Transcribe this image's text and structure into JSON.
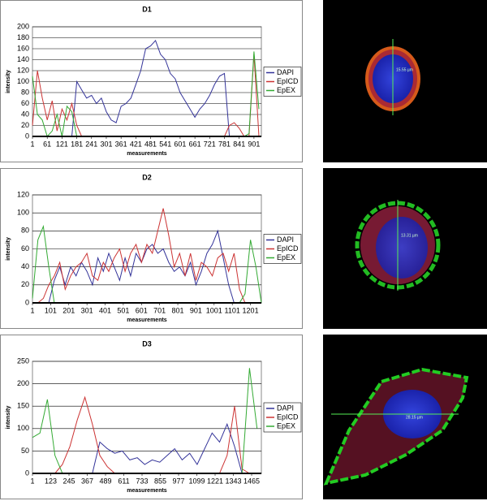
{
  "chart_data": [
    {
      "type": "line",
      "title": "D1",
      "xlabel": "measurements",
      "ylabel": "intensity",
      "x": [
        1,
        21,
        41,
        61,
        81,
        101,
        121,
        141,
        161,
        181,
        201,
        221,
        241,
        261,
        281,
        301,
        321,
        341,
        361,
        381,
        401,
        421,
        441,
        461,
        481,
        501,
        521,
        541,
        561,
        581,
        601,
        621,
        641,
        661,
        681,
        701,
        721,
        741,
        761,
        781,
        801,
        821,
        841,
        861,
        881,
        901,
        921
      ],
      "series": [
        {
          "name": "DAPI",
          "color": "#333399",
          "values": [
            0,
            0,
            0,
            0,
            0,
            0,
            0,
            0,
            0,
            100,
            85,
            70,
            75,
            60,
            70,
            45,
            30,
            25,
            55,
            60,
            70,
            95,
            120,
            160,
            165,
            175,
            150,
            140,
            115,
            105,
            80,
            65,
            50,
            35,
            50,
            60,
            75,
            95,
            110,
            115,
            0,
            0,
            0,
            0,
            0,
            0,
            0
          ]
        },
        {
          "name": "EpICD",
          "color": "#cc3333",
          "values": [
            20,
            120,
            70,
            30,
            65,
            10,
            50,
            30,
            60,
            20,
            0,
            0,
            0,
            0,
            0,
            0,
            0,
            0,
            0,
            0,
            0,
            0,
            0,
            0,
            0,
            0,
            0,
            0,
            0,
            0,
            0,
            0,
            0,
            0,
            0,
            0,
            0,
            0,
            0,
            0,
            20,
            25,
            15,
            0,
            0,
            150,
            0
          ]
        },
        {
          "name": "EpEX",
          "color": "#33aa33",
          "values": [
            110,
            40,
            30,
            0,
            10,
            40,
            0,
            55,
            45,
            0,
            0,
            0,
            0,
            0,
            0,
            0,
            0,
            0,
            0,
            0,
            0,
            0,
            0,
            0,
            0,
            0,
            0,
            0,
            0,
            0,
            0,
            0,
            0,
            0,
            0,
            0,
            0,
            0,
            0,
            0,
            0,
            0,
            0,
            0,
            5,
            155,
            50
          ]
        }
      ],
      "xlim": [
        1,
        931
      ],
      "xticks": [
        1,
        61,
        121,
        181,
        241,
        301,
        361,
        421,
        481,
        541,
        601,
        661,
        721,
        781,
        841,
        901
      ],
      "ylim": [
        0,
        200
      ],
      "yticks": [
        0,
        20,
        40,
        60,
        80,
        100,
        120,
        140,
        160,
        180,
        200
      ],
      "grid": true,
      "legend": "right"
    },
    {
      "type": "line",
      "title": "D2",
      "xlabel": "measurements",
      "ylabel": "intensity",
      "x": [
        1,
        31,
        61,
        91,
        121,
        151,
        181,
        211,
        241,
        271,
        301,
        331,
        361,
        391,
        421,
        451,
        481,
        511,
        541,
        571,
        601,
        631,
        661,
        691,
        721,
        751,
        781,
        811,
        841,
        871,
        901,
        931,
        961,
        991,
        1021,
        1051,
        1081,
        1111,
        1141,
        1171,
        1201,
        1231,
        1261
      ],
      "series": [
        {
          "name": "DAPI",
          "color": "#333399",
          "values": [
            0,
            0,
            0,
            0,
            25,
            40,
            20,
            40,
            30,
            45,
            35,
            20,
            50,
            35,
            55,
            40,
            25,
            50,
            30,
            55,
            45,
            60,
            65,
            55,
            60,
            45,
            35,
            40,
            30,
            45,
            20,
            35,
            55,
            65,
            80,
            50,
            20,
            0,
            0,
            0,
            0,
            0,
            0
          ]
        },
        {
          "name": "EpICD",
          "color": "#cc3333",
          "values": [
            0,
            0,
            5,
            20,
            30,
            45,
            15,
            30,
            40,
            45,
            55,
            30,
            25,
            45,
            35,
            50,
            60,
            35,
            55,
            65,
            45,
            65,
            55,
            80,
            105,
            75,
            40,
            55,
            30,
            55,
            25,
            45,
            40,
            30,
            50,
            55,
            35,
            55,
            15,
            0,
            0,
            0,
            0
          ]
        },
        {
          "name": "EpEX",
          "color": "#33aa33",
          "values": [
            5,
            70,
            85,
            40,
            0,
            0,
            0,
            0,
            0,
            0,
            0,
            0,
            0,
            0,
            0,
            0,
            0,
            0,
            0,
            0,
            0,
            0,
            0,
            0,
            0,
            0,
            0,
            0,
            0,
            0,
            0,
            0,
            0,
            0,
            0,
            0,
            0,
            0,
            0,
            10,
            70,
            40,
            0
          ]
        }
      ],
      "xlim": [
        1,
        1261
      ],
      "xticks": [
        1,
        101,
        201,
        301,
        401,
        501,
        601,
        701,
        801,
        901,
        1001,
        1101,
        1201
      ],
      "ylim": [
        0,
        120
      ],
      "yticks": [
        0,
        20,
        40,
        60,
        80,
        100,
        120
      ],
      "grid": true,
      "legend": "right"
    },
    {
      "type": "line",
      "title": "D3",
      "xlabel": "measurements",
      "ylabel": "intensity",
      "x": [
        1,
        51,
        101,
        151,
        201,
        251,
        301,
        351,
        401,
        451,
        501,
        551,
        601,
        651,
        701,
        751,
        801,
        851,
        901,
        951,
        1001,
        1051,
        1101,
        1151,
        1201,
        1251,
        1301,
        1351,
        1401,
        1451,
        1501
      ],
      "series": [
        {
          "name": "DAPI",
          "color": "#333399",
          "values": [
            0,
            0,
            0,
            0,
            0,
            0,
            0,
            0,
            0,
            70,
            55,
            45,
            50,
            30,
            35,
            20,
            30,
            25,
            40,
            55,
            30,
            45,
            20,
            55,
            90,
            70,
            110,
            60,
            0,
            0,
            0
          ]
        },
        {
          "name": "EpICD",
          "color": "#cc3333",
          "values": [
            0,
            0,
            0,
            0,
            20,
            60,
            120,
            170,
            110,
            40,
            15,
            0,
            0,
            0,
            0,
            0,
            0,
            0,
            0,
            0,
            0,
            0,
            0,
            0,
            0,
            0,
            40,
            150,
            10,
            0,
            0
          ]
        },
        {
          "name": "EpEX",
          "color": "#33aa33",
          "values": [
            80,
            90,
            165,
            40,
            0,
            0,
            0,
            0,
            0,
            0,
            0,
            0,
            0,
            0,
            0,
            0,
            0,
            0,
            0,
            0,
            0,
            0,
            0,
            0,
            0,
            0,
            0,
            0,
            0,
            235,
            100
          ]
        }
      ],
      "xlim": [
        1,
        1530
      ],
      "xticks": [
        1,
        123,
        245,
        367,
        489,
        611,
        733,
        855,
        977,
        1099,
        1221,
        1343,
        1465
      ],
      "ylim": [
        0,
        250
      ],
      "yticks": [
        0,
        50,
        100,
        150,
        200,
        250
      ],
      "grid": true,
      "legend": "right"
    }
  ],
  "images": [
    {
      "scale": "15.55 µm"
    },
    {
      "scale": "13.31 µm"
    },
    {
      "scale": "28.15 µm"
    }
  ]
}
